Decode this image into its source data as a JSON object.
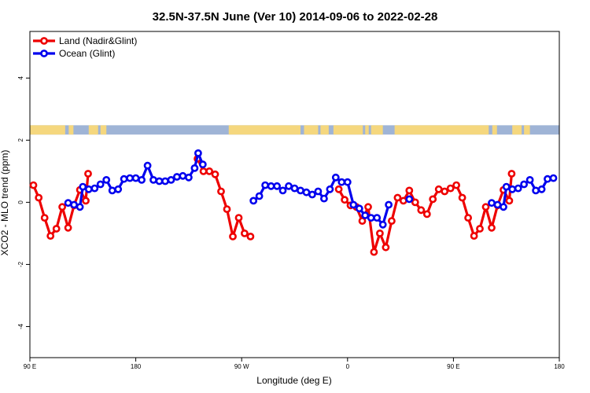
{
  "chart_data": {
    "type": "line",
    "title": "32.5N-37.5N June (Ver 10)   2014-09-06 to 2022-02-28",
    "xlabel": "Longitude (deg E)",
    "ylabel": "XCO2 - MLO trend (ppm)",
    "xlim": [
      90,
      540
    ],
    "ylim": [
      -5,
      5.5
    ],
    "x_ticks": [
      {
        "value": 90,
        "label": "90 E"
      },
      {
        "value": 180,
        "label": "180"
      },
      {
        "value": 270,
        "label": "90 W"
      },
      {
        "value": 360,
        "label": "0"
      },
      {
        "value": 450,
        "label": "90 E"
      },
      {
        "value": 540,
        "label": "180"
      }
    ],
    "y_ticks": [
      {
        "value": -4,
        "label": "-4"
      },
      {
        "value": -2,
        "label": "-2"
      },
      {
        "value": 0,
        "label": "0"
      },
      {
        "value": 2,
        "label": "2"
      },
      {
        "value": 4,
        "label": "4"
      }
    ],
    "legend": {
      "position": "top-left",
      "entries": [
        "Land (Nadir&Glint)",
        "Ocean (Glint)"
      ]
    },
    "series": [
      {
        "name": "Land (Nadir&Glint)",
        "color": "#ee0000",
        "segments": [
          [
            [
              93,
              0.55
            ],
            [
              97.5,
              0.15
            ],
            [
              102.5,
              -0.5
            ],
            [
              107.5,
              -1.08
            ],
            [
              112.5,
              -0.85
            ],
            [
              117.5,
              -0.15
            ],
            [
              122.5,
              -0.82
            ],
            [
              127.5,
              -0.1
            ],
            [
              132.5,
              0.4
            ],
            [
              137.5,
              0.05
            ],
            [
              139.5,
              0.92
            ]
          ],
          [
            [
              232.5,
              1.4
            ],
            [
              237.5,
              1.0
            ],
            [
              242.5,
              1.0
            ],
            [
              247.5,
              0.9
            ],
            [
              252.5,
              0.35
            ],
            [
              257.5,
              -0.22
            ],
            [
              262.5,
              -1.1
            ],
            [
              267.5,
              -0.5
            ],
            [
              272.5,
              -1.0
            ],
            [
              277.5,
              -1.1
            ]
          ],
          [
            [
              352.5,
              0.42
            ],
            [
              357.5,
              0.08
            ],
            [
              362.5,
              -0.1
            ],
            [
              367.5,
              -0.15
            ],
            [
              372.5,
              -0.6
            ],
            [
              377.5,
              -0.15
            ],
            [
              382.5,
              -1.6
            ],
            [
              387.5,
              -1.0
            ],
            [
              392.5,
              -1.45
            ],
            [
              397.5,
              -0.6
            ],
            [
              402.5,
              0.15
            ],
            [
              407.5,
              0.05
            ],
            [
              412.5,
              0.38
            ],
            [
              417.5,
              0.0
            ],
            [
              422.5,
              -0.25
            ],
            [
              427.5,
              -0.38
            ],
            [
              432.5,
              0.1
            ],
            [
              437.5,
              0.42
            ],
            [
              442.5,
              0.35
            ],
            [
              447.5,
              0.45
            ],
            [
              452.5,
              0.55
            ],
            [
              457.5,
              0.15
            ],
            [
              462.5,
              -0.5
            ],
            [
              467.5,
              -1.08
            ],
            [
              472.5,
              -0.85
            ],
            [
              477.5,
              -0.15
            ],
            [
              482.5,
              -0.82
            ],
            [
              487.5,
              -0.1
            ],
            [
              492.5,
              0.4
            ],
            [
              497.5,
              0.05
            ],
            [
              499.5,
              0.92
            ]
          ]
        ]
      },
      {
        "name": "Ocean (Glint)",
        "color": "#0000ee",
        "segments": [
          [
            [
              122.5,
              -0.02
            ],
            [
              127.5,
              -0.08
            ],
            [
              132.5,
              -0.15
            ],
            [
              135,
              0.5
            ],
            [
              140,
              0.42
            ],
            [
              145,
              0.45
            ],
            [
              150,
              0.58
            ],
            [
              155,
              0.72
            ],
            [
              160,
              0.38
            ],
            [
              165,
              0.42
            ],
            [
              170,
              0.75
            ],
            [
              175,
              0.78
            ],
            [
              180,
              0.78
            ],
            [
              185,
              0.72
            ],
            [
              190,
              1.18
            ],
            [
              195,
              0.72
            ],
            [
              200,
              0.68
            ],
            [
              205,
              0.68
            ],
            [
              210,
              0.72
            ],
            [
              215,
              0.82
            ],
            [
              220,
              0.85
            ],
            [
              225,
              0.8
            ],
            [
              230,
              1.1
            ],
            [
              233,
              1.58
            ],
            [
              237,
              1.22
            ]
          ],
          [
            [
              280,
              0.05
            ],
            [
              285,
              0.2
            ],
            [
              290,
              0.55
            ],
            [
              295,
              0.52
            ],
            [
              300,
              0.52
            ],
            [
              305,
              0.38
            ],
            [
              310,
              0.52
            ],
            [
              315,
              0.45
            ],
            [
              320,
              0.38
            ],
            [
              325,
              0.32
            ],
            [
              330,
              0.25
            ],
            [
              335,
              0.35
            ],
            [
              340,
              0.12
            ],
            [
              345,
              0.42
            ],
            [
              350,
              0.8
            ],
            [
              355,
              0.65
            ],
            [
              360,
              0.65
            ],
            [
              365,
              -0.08
            ],
            [
              370,
              -0.2
            ],
            [
              375,
              -0.42
            ],
            [
              380,
              -0.5
            ],
            [
              385,
              -0.5
            ],
            [
              390,
              -0.72
            ],
            [
              395,
              -0.08
            ]
          ],
          [
            [
              412.5,
              0.1
            ]
          ],
          [
            [
              482.5,
              -0.02
            ],
            [
              487.5,
              -0.08
            ],
            [
              492.5,
              -0.15
            ],
            [
              495,
              0.5
            ],
            [
              500,
              0.42
            ],
            [
              505,
              0.45
            ],
            [
              510,
              0.58
            ],
            [
              515,
              0.72
            ],
            [
              520,
              0.38
            ],
            [
              525,
              0.42
            ],
            [
              530,
              0.75
            ],
            [
              535,
              0.78
            ]
          ]
        ]
      }
    ],
    "map_strip": {
      "ymin": 2.18,
      "ymax": 2.48,
      "ocean_color": "#9fb4d6",
      "land_color": "#f5d77e",
      "land_x_ranges": [
        [
          90,
          120
        ],
        [
          123,
          127
        ],
        [
          140,
          148
        ],
        [
          150,
          155
        ],
        [
          259,
          320
        ],
        [
          323,
          335
        ],
        [
          337,
          344
        ],
        [
          348,
          373
        ],
        [
          375,
          378
        ],
        [
          380,
          390
        ],
        [
          400,
          480
        ],
        [
          483,
          487
        ],
        [
          500,
          508
        ],
        [
          510,
          515
        ]
      ]
    }
  }
}
